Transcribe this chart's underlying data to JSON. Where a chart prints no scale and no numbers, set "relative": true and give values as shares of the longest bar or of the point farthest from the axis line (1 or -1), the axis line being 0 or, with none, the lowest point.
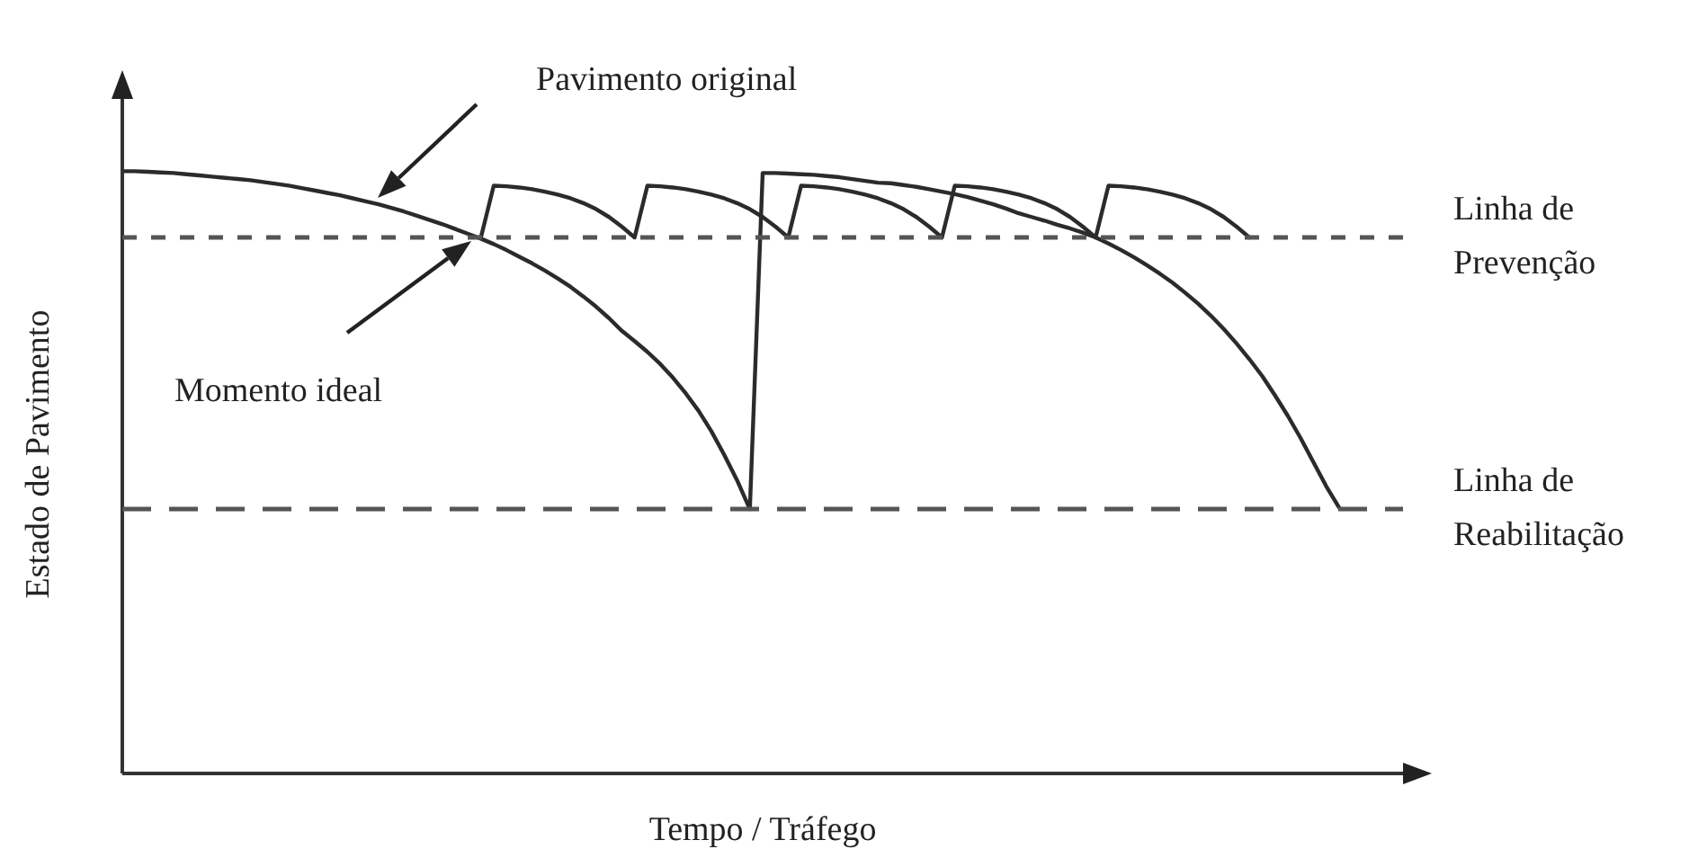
{
  "chart_data": {
    "type": "line",
    "relative": true,
    "xlabel": "Tempo / Tráfego",
    "ylabel": "Estado de Pavimento",
    "legend": false,
    "marker": "none",
    "line_style": "solid",
    "categories": [
      null,
      null,
      null,
      null,
      null,
      null,
      null,
      null,
      null,
      null,
      null,
      null,
      null,
      null,
      null,
      null,
      null,
      null,
      null,
      null,
      null,
      null,
      null,
      null,
      null,
      null,
      null,
      null,
      null,
      null,
      null,
      null,
      null,
      null,
      null,
      null,
      null,
      null,
      null,
      null,
      null,
      null,
      null,
      null,
      null,
      null,
      null,
      null,
      null,
      null,
      null,
      null,
      null,
      null,
      null,
      null,
      null,
      null,
      null,
      null,
      null,
      null,
      null,
      null,
      null,
      null,
      null,
      null,
      null,
      null,
      null,
      null,
      null,
      null,
      null,
      null,
      null,
      null,
      null,
      null,
      null,
      null,
      null,
      null,
      null,
      null,
      null,
      null,
      null,
      null,
      null,
      null,
      null,
      null,
      null,
      null,
      null,
      null,
      null,
      null,
      null
    ],
    "series": [
      {
        "color": "#2b2b2b",
        "values": [
          1.0,
          1.0,
          0.999,
          0.998,
          0.997,
          0.995,
          0.993,
          0.991,
          0.989,
          0.987,
          0.985,
          0.982,
          0.979,
          0.976,
          0.972,
          0.968,
          0.964,
          0.96,
          0.955,
          0.95,
          0.945,
          0.939,
          0.933,
          0.926,
          0.919,
          0.912,
          0.904,
          0.896,
          0.888,
          0.879,
          0.869,
          0.858,
          0.847,
          0.835,
          0.822,
          0.808,
          0.792,
          0.775,
          0.756,
          0.735,
          0.718,
          0.7,
          0.68,
          0.657,
          0.631,
          0.602,
          0.568,
          0.529,
          0.487,
          0.439,
          null,
          null,
          null,
          null,
          null,
          null,
          null,
          null,
          null,
          null,
          null,
          null,
          null,
          null,
          null,
          null,
          null,
          null,
          null,
          null,
          null,
          null,
          null,
          null,
          null,
          null,
          null,
          null,
          null,
          null,
          null,
          null,
          null,
          null,
          null,
          null,
          null,
          null,
          null,
          null,
          null,
          null,
          null,
          null,
          null,
          null,
          null,
          null,
          null,
          null,
          null
        ]
      },
      {
        "color": "#2b2b2b",
        "values": [
          null,
          null,
          null,
          null,
          null,
          null,
          null,
          null,
          null,
          null,
          null,
          null,
          null,
          null,
          null,
          null,
          null,
          null,
          null,
          null,
          null,
          null,
          null,
          null,
          null,
          null,
          null,
          null,
          null,
          null,
          null,
          null,
          null,
          null,
          null,
          null,
          null,
          null,
          null,
          null,
          null,
          null,
          null,
          null,
          null,
          null,
          null,
          null,
          null,
          0.439,
          0.997,
          0.997,
          0.996,
          0.995,
          0.994,
          0.992,
          0.99,
          0.987,
          0.984,
          0.981,
          0.98,
          0.977,
          0.974,
          0.97,
          0.966,
          0.962,
          0.957,
          0.951,
          0.945,
          0.938,
          0.93,
          0.924,
          0.918,
          0.911,
          0.905,
          0.898,
          0.89,
          0.88,
          0.869,
          0.857,
          0.844,
          0.83,
          0.815,
          0.798,
          0.78,
          0.76,
          0.738,
          0.714,
          0.688,
          0.66,
          0.628,
          0.594,
          0.557,
          0.517,
          0.477,
          0.442,
          null,
          null,
          null,
          null,
          null
        ]
      },
      {
        "color": "#2b2b2b",
        "values": [
          null,
          null,
          null,
          null,
          null,
          null,
          null,
          null,
          null,
          null,
          null,
          null,
          null,
          null,
          null,
          null,
          null,
          null,
          null,
          null,
          null,
          null,
          null,
          null,
          null,
          null,
          null,
          null,
          0.89,
          0.976,
          0.975,
          0.973,
          0.97,
          0.966,
          0.961,
          0.955,
          0.947,
          0.937,
          0.924,
          0.908,
          0.89,
          0.976,
          0.975,
          0.973,
          0.97,
          0.966,
          0.961,
          0.955,
          0.947,
          0.937,
          0.924,
          0.908,
          0.89,
          0.976,
          0.975,
          0.973,
          0.97,
          0.966,
          0.961,
          0.955,
          0.947,
          0.937,
          0.924,
          0.908,
          0.89,
          0.976,
          0.975,
          0.973,
          0.97,
          0.966,
          0.961,
          0.955,
          0.947,
          0.937,
          0.924,
          0.908,
          0.89,
          0.976,
          0.975,
          0.973,
          0.97,
          0.966,
          0.961,
          0.955,
          0.947,
          0.937,
          0.924,
          0.908,
          0.89,
          null,
          null,
          null,
          null,
          null,
          null,
          null,
          null,
          null,
          null,
          null,
          null
        ]
      }
    ],
    "ref_lines": [
      {
        "axis": "y",
        "value": 0.89,
        "label": "Linha de Prevenção",
        "color": "#555555",
        "line_style": "dotted"
      },
      {
        "axis": "y",
        "value": 0.439,
        "label": "Linha de Reabilitação",
        "color": "#555555",
        "line_style": "dashed"
      }
    ],
    "annotations": [
      "Pavimento original",
      "Momento ideal"
    ]
  }
}
